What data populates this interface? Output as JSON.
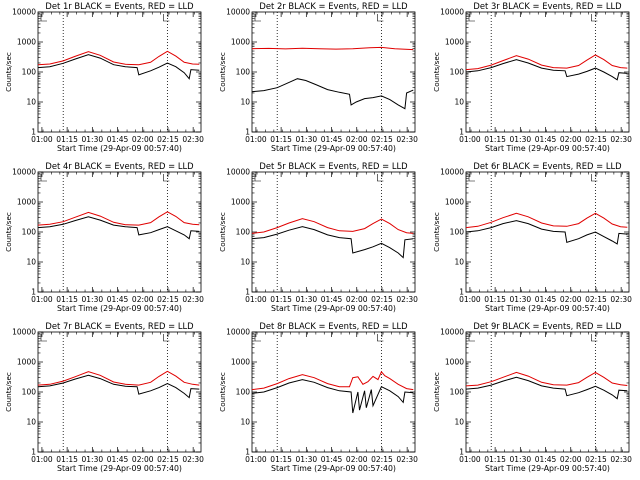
{
  "chart_data": [
    {
      "type": "line",
      "title": "Det 1r BLACK = Events, RED = LLD",
      "ylabel": "Counts/sec",
      "xlabel": "Start Time (29-Apr-09 00:57:40)",
      "xticks": [
        "01:00",
        "01:15",
        "01:30",
        "01:45",
        "02:00",
        "02:15",
        "02:30"
      ],
      "yticks": [
        "1",
        "10",
        "100",
        "1000",
        "10000"
      ],
      "ylim": [
        1,
        10000
      ],
      "ylog": true,
      "xlim_min": [
        0,
        97
      ],
      "markers_min": [
        15,
        77
      ],
      "series": [
        {
          "color": "#e00000",
          "min": [
            0,
            7,
            15,
            22,
            30,
            37,
            45,
            52,
            60,
            67,
            72,
            77,
            82,
            87,
            92,
            96
          ],
          "values": [
            175,
            185,
            235,
            330,
            480,
            360,
            215,
            180,
            175,
            210,
            330,
            490,
            340,
            210,
            185,
            180
          ]
        },
        {
          "color": "#000000",
          "min": [
            0,
            7,
            15,
            22,
            30,
            37,
            45,
            52,
            59,
            60,
            67,
            72,
            77,
            82,
            87,
            90,
            91,
            96
          ],
          "values": [
            140,
            150,
            195,
            270,
            380,
            290,
            175,
            150,
            140,
            80,
            110,
            145,
            200,
            150,
            95,
            60,
            120,
            115
          ]
        }
      ]
    },
    {
      "type": "line",
      "title": "Det 2r BLACK = Events, RED = LLD",
      "ylabel": "Counts/sec",
      "xlabel": "Start Time (29-Apr-09 00:57:40)",
      "xticks": [
        "01:00",
        "01:15",
        "01:30",
        "01:45",
        "02:00",
        "02:15",
        "02:30"
      ],
      "yticks": [
        "1",
        "10",
        "100",
        "1000",
        "10000"
      ],
      "ylim": [
        1,
        10000
      ],
      "ylog": true,
      "xlim_min": [
        0,
        97
      ],
      "markers_min": [
        15,
        77
      ],
      "series": [
        {
          "color": "#e00000",
          "min": [
            0,
            10,
            20,
            30,
            40,
            50,
            60,
            70,
            77,
            85,
            96
          ],
          "values": [
            600,
            610,
            590,
            620,
            600,
            580,
            600,
            640,
            660,
            600,
            560
          ]
        },
        {
          "color": "#000000",
          "min": [
            0,
            7,
            15,
            22,
            27,
            32,
            38,
            45,
            52,
            58,
            59,
            62,
            67,
            72,
            77,
            82,
            87,
            91,
            92,
            96
          ],
          "values": [
            22,
            24,
            30,
            45,
            60,
            52,
            38,
            26,
            21,
            18,
            8,
            10,
            13,
            14,
            16,
            12,
            8,
            6,
            20,
            25
          ]
        }
      ]
    },
    {
      "type": "line",
      "title": "Det 3r BLACK = Events, RED = LLD",
      "ylabel": "Counts/sec",
      "xlabel": "Start Time (29-Apr-09 00:57:40)",
      "xticks": [
        "01:00",
        "01:15",
        "01:30",
        "01:45",
        "02:00",
        "02:15",
        "02:30"
      ],
      "yticks": [
        "1",
        "10",
        "100",
        "1000",
        "10000"
      ],
      "ylim": [
        1,
        10000
      ],
      "ylog": true,
      "xlim_min": [
        0,
        97
      ],
      "markers_min": [
        15,
        77
      ],
      "series": [
        {
          "color": "#e00000",
          "min": [
            0,
            7,
            15,
            22,
            30,
            37,
            45,
            52,
            60,
            67,
            72,
            77,
            82,
            87,
            92,
            96
          ],
          "values": [
            120,
            130,
            170,
            240,
            350,
            270,
            170,
            140,
            135,
            165,
            250,
            370,
            260,
            165,
            140,
            135
          ]
        },
        {
          "color": "#000000",
          "min": [
            0,
            7,
            15,
            22,
            30,
            37,
            45,
            52,
            59,
            60,
            67,
            72,
            77,
            82,
            87,
            90,
            91,
            96
          ],
          "values": [
            100,
            110,
            140,
            190,
            260,
            200,
            135,
            115,
            110,
            70,
            85,
            105,
            135,
            100,
            70,
            55,
            95,
            90
          ]
        }
      ]
    },
    {
      "type": "line",
      "title": "Det 4r BLACK = Events, RED = LLD",
      "ylabel": "Counts/sec",
      "xlabel": "Start Time (29-Apr-09 00:57:40)",
      "xticks": [
        "01:00",
        "01:15",
        "01:30",
        "01:45",
        "02:00",
        "02:15",
        "02:30"
      ],
      "yticks": [
        "1",
        "10",
        "100",
        "1000",
        "10000"
      ],
      "ylim": [
        1,
        10000
      ],
      "ylog": true,
      "xlim_min": [
        0,
        97
      ],
      "markers_min": [
        15,
        77
      ],
      "series": [
        {
          "color": "#e00000",
          "min": [
            0,
            7,
            15,
            22,
            30,
            37,
            45,
            52,
            60,
            67,
            72,
            77,
            82,
            87,
            92,
            96
          ],
          "values": [
            170,
            180,
            220,
            310,
            450,
            340,
            210,
            175,
            170,
            205,
            320,
            470,
            330,
            205,
            180,
            175
          ]
        },
        {
          "color": "#000000",
          "min": [
            0,
            7,
            15,
            22,
            30,
            37,
            45,
            52,
            59,
            60,
            67,
            72,
            77,
            82,
            87,
            90,
            91,
            96
          ],
          "values": [
            140,
            150,
            180,
            240,
            320,
            250,
            170,
            150,
            140,
            80,
            95,
            120,
            150,
            110,
            80,
            60,
            110,
            105
          ]
        }
      ]
    },
    {
      "type": "line",
      "title": "Det 5r BLACK = Events, RED = LLD",
      "ylabel": "Counts/sec",
      "xlabel": "Start Time (29-Apr-09 00:57:40)",
      "xticks": [
        "01:00",
        "01:15",
        "01:30",
        "01:45",
        "02:00",
        "02:15",
        "02:30"
      ],
      "yticks": [
        "1",
        "10",
        "100",
        "1000",
        "10000"
      ],
      "ylim": [
        1,
        10000
      ],
      "ylog": true,
      "xlim_min": [
        0,
        97
      ],
      "markers_min": [
        15,
        77
      ],
      "series": [
        {
          "color": "#e00000",
          "min": [
            0,
            7,
            15,
            22,
            30,
            37,
            45,
            52,
            60,
            67,
            72,
            77,
            82,
            87,
            92,
            96
          ],
          "values": [
            90,
            100,
            140,
            200,
            280,
            220,
            140,
            110,
            105,
            130,
            190,
            270,
            190,
            120,
            95,
            90
          ]
        },
        {
          "color": "#000000",
          "min": [
            0,
            7,
            15,
            22,
            30,
            37,
            45,
            52,
            59,
            60,
            67,
            72,
            77,
            82,
            87,
            90,
            91,
            96
          ],
          "values": [
            60,
            65,
            85,
            115,
            150,
            120,
            80,
            65,
            60,
            20,
            26,
            32,
            42,
            30,
            20,
            14,
            55,
            60
          ]
        }
      ]
    },
    {
      "type": "line",
      "title": "Det 6r BLACK = Events, RED = LLD",
      "ylabel": "Counts/sec",
      "xlabel": "Start Time (29-Apr-09 00:57:40)",
      "xticks": [
        "01:00",
        "01:15",
        "01:30",
        "01:45",
        "02:00",
        "02:15",
        "02:30"
      ],
      "yticks": [
        "1",
        "10",
        "100",
        "1000",
        "10000"
      ],
      "ylim": [
        1,
        10000
      ],
      "ylog": true,
      "xlim_min": [
        0,
        97
      ],
      "markers_min": [
        15,
        77
      ],
      "series": [
        {
          "color": "#e00000",
          "min": [
            0,
            7,
            15,
            22,
            30,
            37,
            45,
            52,
            60,
            67,
            72,
            77,
            82,
            87,
            92,
            96
          ],
          "values": [
            140,
            155,
            210,
            300,
            420,
            320,
            200,
            160,
            155,
            190,
            290,
            420,
            290,
            185,
            150,
            145
          ]
        },
        {
          "color": "#000000",
          "min": [
            0,
            7,
            15,
            22,
            30,
            37,
            45,
            52,
            59,
            60,
            67,
            72,
            77,
            82,
            87,
            90,
            91,
            96
          ],
          "values": [
            100,
            110,
            140,
            190,
            240,
            190,
            125,
            105,
            100,
            45,
            60,
            80,
            100,
            70,
            50,
            40,
            90,
            85
          ]
        }
      ]
    },
    {
      "type": "line",
      "title": "Det 7r BLACK = Events, RED = LLD",
      "ylabel": "Counts/sec",
      "xlabel": "Start Time (29-Apr-09 00:57:40)",
      "xticks": [
        "01:00",
        "01:15",
        "01:30",
        "01:45",
        "02:00",
        "02:15",
        "02:30"
      ],
      "yticks": [
        "1",
        "10",
        "100",
        "1000",
        "10000"
      ],
      "ylim": [
        1,
        10000
      ],
      "ylog": true,
      "xlim_min": [
        0,
        97
      ],
      "markers_min": [
        15,
        77
      ],
      "series": [
        {
          "color": "#e00000",
          "min": [
            0,
            7,
            15,
            22,
            30,
            37,
            45,
            52,
            60,
            67,
            72,
            77,
            82,
            87,
            92,
            96
          ],
          "values": [
            170,
            180,
            230,
            320,
            480,
            360,
            215,
            180,
            170,
            210,
            330,
            490,
            340,
            210,
            180,
            170
          ]
        },
        {
          "color": "#000000",
          "min": [
            0,
            7,
            15,
            22,
            30,
            37,
            45,
            52,
            59,
            60,
            67,
            72,
            77,
            82,
            87,
            90,
            91,
            96
          ],
          "values": [
            150,
            160,
            200,
            270,
            360,
            280,
            180,
            155,
            150,
            85,
            110,
            140,
            190,
            140,
            90,
            65,
            130,
            125
          ]
        }
      ]
    },
    {
      "type": "line",
      "title": "Det 8r BLACK = Events, RED = LLD",
      "ylabel": "Counts/sec",
      "xlabel": "Start Time (29-Apr-09 00:57:40)",
      "xticks": [
        "01:00",
        "01:15",
        "01:30",
        "01:45",
        "02:00",
        "02:15",
        "02:30"
      ],
      "yticks": [
        "1",
        "10",
        "100",
        "1000",
        "10000"
      ],
      "ylim": [
        1,
        10000
      ],
      "ylog": true,
      "xlim_min": [
        0,
        97
      ],
      "markers_min": [
        15,
        77
      ],
      "series": [
        {
          "color": "#e00000",
          "min": [
            0,
            7,
            15,
            22,
            30,
            37,
            45,
            52,
            58,
            60,
            63,
            66,
            69,
            72,
            75,
            77,
            79,
            82,
            87,
            92,
            96
          ],
          "values": [
            120,
            135,
            190,
            280,
            380,
            300,
            190,
            150,
            150,
            300,
            320,
            180,
            220,
            330,
            260,
            470,
            350,
            280,
            180,
            130,
            120
          ]
        },
        {
          "color": "#000000",
          "min": [
            0,
            7,
            15,
            22,
            30,
            37,
            45,
            52,
            59,
            60,
            63,
            64,
            67,
            68,
            71,
            72,
            77,
            82,
            87,
            90,
            91,
            96
          ],
          "values": [
            90,
            100,
            140,
            200,
            260,
            210,
            140,
            110,
            100,
            20,
            100,
            25,
            110,
            30,
            120,
            35,
            150,
            110,
            70,
            45,
            100,
            95
          ]
        }
      ]
    },
    {
      "type": "line",
      "title": "Det 9r BLACK = Events, RED = LLD",
      "ylabel": "Counts/sec",
      "xlabel": "Start Time (29-Apr-09 00:57:40)",
      "xticks": [
        "01:00",
        "01:15",
        "01:30",
        "01:45",
        "02:00",
        "02:15",
        "02:30"
      ],
      "yticks": [
        "1",
        "10",
        "100",
        "1000",
        "10000"
      ],
      "ylim": [
        1,
        10000
      ],
      "ylog": true,
      "xlim_min": [
        0,
        97
      ],
      "markers_min": [
        15,
        77
      ],
      "series": [
        {
          "color": "#e00000",
          "min": [
            0,
            7,
            15,
            22,
            30,
            37,
            45,
            52,
            60,
            67,
            72,
            77,
            82,
            87,
            92,
            96
          ],
          "values": [
            160,
            170,
            220,
            310,
            450,
            340,
            210,
            175,
            170,
            205,
            310,
            450,
            310,
            200,
            175,
            165
          ]
        },
        {
          "color": "#000000",
          "min": [
            0,
            7,
            15,
            22,
            30,
            37,
            45,
            52,
            59,
            60,
            67,
            72,
            77,
            82,
            87,
            90,
            91,
            96
          ],
          "values": [
            125,
            135,
            170,
            230,
            310,
            240,
            160,
            135,
            125,
            75,
            95,
            120,
            155,
            115,
            80,
            60,
            115,
            110
          ]
        }
      ]
    }
  ]
}
